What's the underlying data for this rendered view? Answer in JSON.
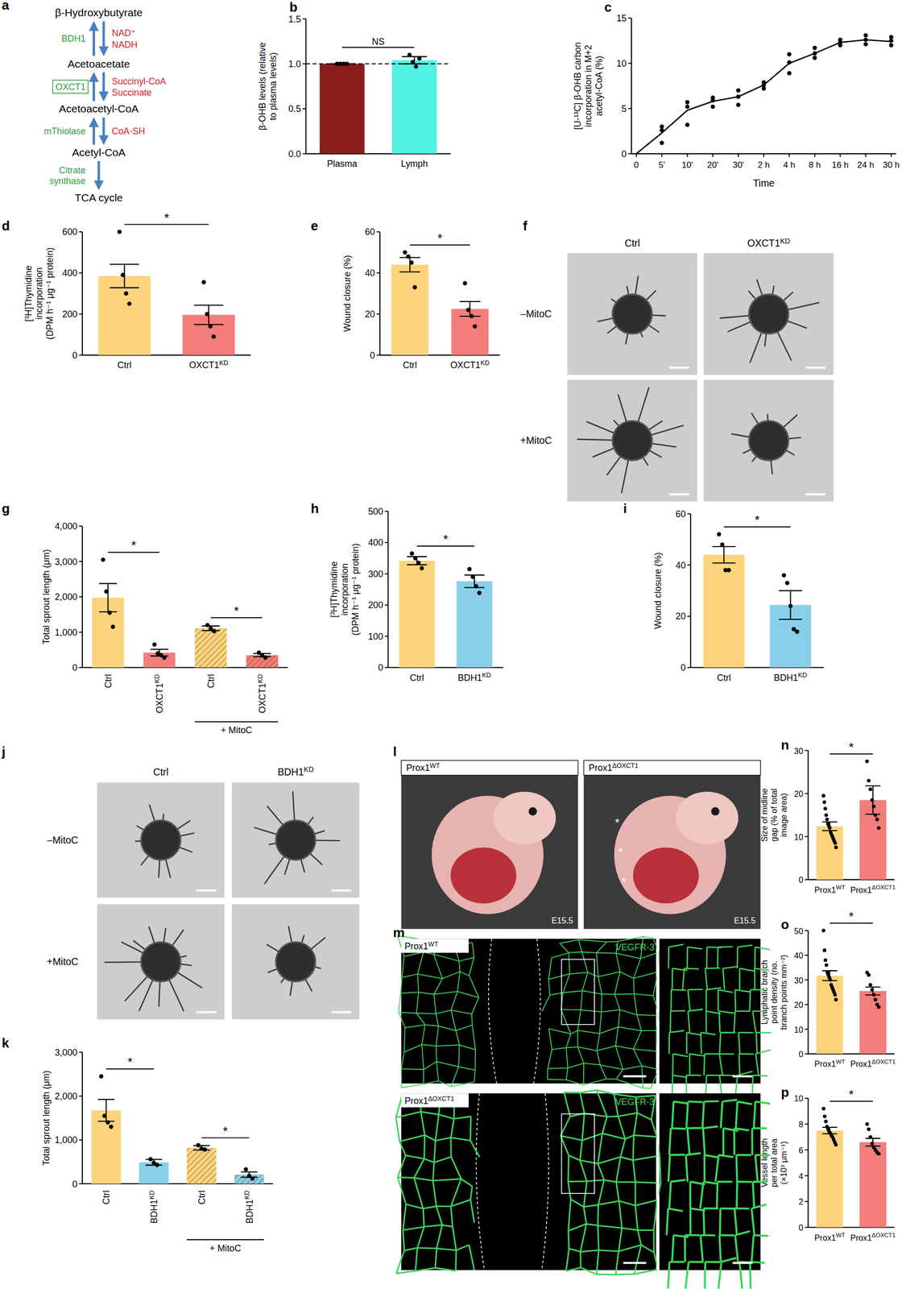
{
  "pathway": {
    "panel": "a",
    "metabolites": [
      "β-Hydroxybutyrate",
      "Acetoacetate",
      "Acetoacetyl-CoA",
      "Acetyl-CoA",
      "TCA cycle"
    ],
    "reactions": [
      {
        "enzyme": [
          "BDH1"
        ],
        "cofactors": [
          "NAD⁺",
          "NADH"
        ],
        "boxed": false,
        "reversible": true
      },
      {
        "enzyme": [
          "OXCT1"
        ],
        "cofactors": [
          "Succinyl-CoA",
          "Succinate"
        ],
        "boxed": true,
        "reversible": true
      },
      {
        "enzyme": [
          "mThiolase"
        ],
        "cofactors": [
          "CoA-SH"
        ],
        "boxed": false,
        "reversible": true
      },
      {
        "enzyme": [
          "Citrate",
          "synthase"
        ],
        "cofactors": [],
        "boxed": false,
        "reversible": false
      }
    ]
  },
  "chart_data": [
    {
      "panel": "b",
      "type": "bar",
      "ylabel": [
        "β-OHB levels (relative",
        "to plasma levels)"
      ],
      "categories": [
        "Plasma",
        "Lymph"
      ],
      "values": [
        1.0,
        1.04
      ],
      "errors": [
        0,
        0.04
      ],
      "points": [
        [
          1,
          1,
          1,
          1
        ],
        [
          1.1,
          1.02,
          0.97,
          1.06
        ]
      ],
      "colors": [
        "#8b1c1c",
        "#52f3e4"
      ],
      "ylim": [
        0,
        1.5
      ],
      "yticks": [
        {
          "value": 0,
          "label": "0.0"
        },
        {
          "value": 0.5,
          "label": "0.5"
        },
        {
          "value": 1,
          "label": "1.0"
        },
        {
          "value": 1.5,
          "label": "1.5"
        }
      ],
      "reference_line": 1,
      "significance": [
        {
          "label": "NS",
          "pair": [
            0,
            1
          ]
        }
      ]
    },
    {
      "panel": "c",
      "type": "line",
      "ylabel": [
        "[U-¹³C] β-OHB carbon",
        "incorporation in M+2",
        "acetyl-CoA (%)"
      ],
      "xlabel": "Time",
      "categories": [
        "0",
        "5'",
        "10'",
        "20'",
        "30'",
        "2 h",
        "4 h",
        "8 h",
        "16 h",
        "24 h",
        "30 h"
      ],
      "values": [
        0,
        2.3,
        4.8,
        5.8,
        6.3,
        7.6,
        10,
        11.1,
        12.3,
        12.6,
        12.4
      ],
      "points": [
        [],
        [
          1.2,
          2.6,
          3
        ],
        [
          3.2,
          5.2,
          5.7
        ],
        [
          5.2,
          5.9,
          6.2
        ],
        [
          5.4,
          6.3,
          7
        ],
        [
          7.2,
          7.6,
          7.9
        ],
        [
          8.9,
          10.1,
          11
        ],
        [
          10.6,
          11.1,
          11.7
        ],
        [
          12,
          12.3,
          12.6
        ],
        [
          12.1,
          12.6,
          13.1
        ],
        [
          12,
          12.5,
          12.9
        ]
      ],
      "color": "#000000",
      "ylim": [
        0,
        15
      ],
      "yticks": [
        0,
        5,
        10,
        15
      ]
    },
    {
      "panel": "d",
      "type": "bar",
      "ylabel": [
        "[³H]Thymidine",
        "incorporation",
        "(DPM h⁻¹ μg⁻¹ protein)"
      ],
      "categories": [
        "Ctrl",
        "OXCT1KD"
      ],
      "values": [
        385,
        196
      ],
      "errors": [
        57,
        47
      ],
      "points": [
        [
          600,
          390,
          300,
          250
        ],
        [
          355,
          200,
          140,
          90
        ]
      ],
      "colors": [
        "#fdd47c",
        "#f27d7a"
      ],
      "ylim": [
        0,
        600
      ],
      "yticks": [
        0,
        200,
        400,
        600
      ],
      "significance": [
        {
          "label": "*",
          "pair": [
            0,
            1
          ]
        }
      ]
    },
    {
      "panel": "e",
      "type": "bar",
      "ylabel": [
        "Wound closure (%)"
      ],
      "categories": [
        "Ctrl",
        "OXCT1KD"
      ],
      "values": [
        44,
        22.5
      ],
      "errors": [
        3.5,
        3.6
      ],
      "points": [
        [
          50,
          48,
          45,
          33
        ],
        [
          35,
          22,
          19,
          14
        ]
      ],
      "colors": [
        "#fdd47c",
        "#f27d7a"
      ],
      "ylim": [
        0,
        60
      ],
      "yticks": [
        0,
        20,
        40,
        60
      ],
      "significance": [
        {
          "label": "*",
          "pair": [
            0,
            1
          ]
        }
      ]
    },
    {
      "panel": "g",
      "type": "bar",
      "ylabel": [
        "Total sprout length (μm)"
      ],
      "categories": [
        "Ctrl",
        "OXCT1KD",
        "Ctrl",
        "OXCT1KD"
      ],
      "values": [
        1975,
        420,
        1110,
        350
      ],
      "errors": [
        400,
        95,
        65,
        45
      ],
      "points": [
        [
          3050,
          2150,
          1550,
          1150
        ],
        [
          650,
          400,
          350,
          280
        ],
        [
          1200,
          1100,
          1030
        ],
        [
          420,
          350,
          280
        ]
      ],
      "colors": [
        "#fdd47c",
        "#f27d7a",
        "#fdd47c",
        "#f27d7a"
      ],
      "ylim": [
        0,
        4000
      ],
      "yticks": [
        0,
        {
          "value": 1000,
          "label": "1,000"
        },
        {
          "value": 2000,
          "label": "2,000"
        },
        {
          "value": 3000,
          "label": "3,000"
        },
        {
          "value": 4000,
          "label": "4,000"
        }
      ],
      "groups": [
        {
          "label": "+ MitoC",
          "range": [
            2,
            3
          ]
        }
      ],
      "significance": [
        {
          "label": "*",
          "pair": [
            0,
            1
          ]
        },
        {
          "label": "*",
          "pair": [
            2,
            3
          ]
        }
      ]
    },
    {
      "panel": "h",
      "type": "bar",
      "ylabel": [
        "[³H]Thymidine",
        "incorporation",
        "(DPM h⁻¹ μg⁻¹ protein)"
      ],
      "categories": [
        "Ctrl",
        "BDH1KD"
      ],
      "values": [
        342,
        276
      ],
      "errors": [
        13,
        20
      ],
      "points": [
        [
          365,
          350,
          335,
          318
        ],
        [
          315,
          290,
          260,
          239
        ]
      ],
      "colors": [
        "#fdd47c",
        "#88cfe9"
      ],
      "ylim": [
        0,
        500
      ],
      "yticks": [
        0,
        100,
        200,
        300,
        400,
        500
      ],
      "significance": [
        {
          "label": "*",
          "pair": [
            0,
            1
          ]
        }
      ]
    },
    {
      "panel": "i",
      "type": "bar",
      "ylabel": [
        "Wound closure (%)"
      ],
      "categories": [
        "Ctrl",
        "BDH1KD"
      ],
      "values": [
        44,
        24.4
      ],
      "errors": [
        3.2,
        5.6
      ],
      "points": [
        [
          52,
          48,
          38,
          38
        ],
        [
          36,
          33,
          24,
          15,
          14
        ]
      ],
      "colors": [
        "#fdd47c",
        "#88cfe9"
      ],
      "ylim": [
        0,
        60
      ],
      "yticks": [
        0,
        20,
        40,
        60
      ],
      "significance": [
        {
          "label": "*",
          "pair": [
            0,
            1
          ]
        }
      ]
    },
    {
      "panel": "k",
      "type": "bar",
      "ylabel": [
        "Total sprout length (μm)"
      ],
      "categories": [
        "Ctrl",
        "BDH1KD",
        "Ctrl",
        "BDH1KD"
      ],
      "values": [
        1675,
        490,
        820,
        210
      ],
      "errors": [
        250,
        65,
        50,
        60
      ],
      "points": [
        [
          2450,
          1550,
          1400,
          1300
        ],
        [
          560,
          480,
          430
        ],
        [
          880,
          800,
          780
        ],
        [
          330,
          180,
          120
        ]
      ],
      "colors": [
        "#fdd47c",
        "#88cfe9",
        "#fdd47c",
        "#88cfe9"
      ],
      "ylim": [
        0,
        3000
      ],
      "yticks": [
        0,
        {
          "value": 1000,
          "label": "1,000"
        },
        {
          "value": 2000,
          "label": "2,000"
        },
        {
          "value": 3000,
          "label": "3,000"
        }
      ],
      "groups": [
        {
          "label": "+ MitoC",
          "range": [
            2,
            3
          ]
        }
      ],
      "significance": [
        {
          "label": "*",
          "pair": [
            0,
            1
          ]
        },
        {
          "label": "*",
          "pair": [
            2,
            3
          ]
        }
      ]
    },
    {
      "panel": "n",
      "type": "bar",
      "ylabel": [
        "Size of midline",
        "gap (% of total",
        "image area)"
      ],
      "categories": [
        "Prox1WT",
        "Prox1ΔOXCT1"
      ],
      "values": [
        12.4,
        18.5
      ],
      "errors": [
        1.0,
        3.3
      ],
      "points": [
        [
          19.5,
          18,
          16.5,
          15,
          14,
          13,
          12.5,
          12,
          11,
          10.5,
          10,
          9.5,
          9,
          8.5,
          7.5
        ],
        [
          27.5,
          23,
          21,
          18.5,
          17,
          15,
          14,
          12
        ]
      ],
      "colors": [
        "#fdd47c",
        "#f27d7a"
      ],
      "ylim": [
        0,
        30
      ],
      "yticks": [
        0,
        10,
        20,
        30
      ],
      "significance": [
        {
          "label": "*",
          "pair": [
            0,
            1
          ]
        }
      ]
    },
    {
      "panel": "o",
      "type": "bar",
      "ylabel": [
        "Lymphatic branch",
        "point density (no.",
        "branch points mm⁻²)"
      ],
      "categories": [
        "Prox1WT",
        "Prox1ΔOXCT1"
      ],
      "values": [
        31.7,
        25.5
      ],
      "errors": [
        2,
        1.6
      ],
      "points": [
        [
          50,
          42,
          38,
          36,
          33,
          32,
          31,
          30,
          28,
          27,
          26,
          25,
          24,
          22
        ],
        [
          33,
          32,
          28,
          26,
          24,
          22,
          20,
          19
        ]
      ],
      "colors": [
        "#fdd47c",
        "#f27d7a"
      ],
      "ylim": [
        0,
        50
      ],
      "yticks": [
        0,
        10,
        20,
        30,
        40,
        50
      ],
      "significance": [
        {
          "label": "*",
          "pair": [
            0,
            1
          ]
        }
      ]
    },
    {
      "panel": "p",
      "type": "bar",
      "ylabel": [
        "Vessel length",
        "per total area",
        "(×10³ μm⁻¹)"
      ],
      "categories": [
        "Prox1WT",
        "Prox1ΔOXCT1"
      ],
      "values": [
        7.5,
        6.6
      ],
      "errors": [
        0.25,
        0.3
      ],
      "points": [
        [
          9.2,
          8.6,
          8.2,
          7.8,
          7.6,
          7.4,
          7.3,
          7.1,
          7,
          6.8,
          6.6,
          6.4
        ],
        [
          8,
          7.6,
          7,
          6.5,
          6.2,
          6,
          5.8,
          5.7
        ]
      ],
      "colors": [
        "#fdd47c",
        "#f27d7a"
      ],
      "ylim": [
        0,
        10
      ],
      "yticks": [
        0,
        2,
        4,
        6,
        8,
        10
      ],
      "significance": [
        {
          "label": "*",
          "pair": [
            0,
            1
          ]
        }
      ]
    }
  ],
  "images": [
    {
      "panel": "f",
      "kind": "spheroids",
      "columns": [
        "Ctrl",
        "OXCT1KD"
      ],
      "rows": [
        "–MitoC",
        "+MitoC"
      ]
    },
    {
      "panel": "j",
      "kind": "spheroids",
      "columns": [
        "Ctrl",
        "BDH1KD"
      ],
      "rows": [
        "–MitoC",
        "+MitoC"
      ]
    },
    {
      "panel": "l",
      "kind": "embryos",
      "columns": [
        "Prox1WT",
        "Prox1ΔOXCT1"
      ],
      "stage": "E15.5",
      "annotations": [
        [],
        [
          "*",
          "*",
          "*"
        ]
      ]
    },
    {
      "panel": "m",
      "kind": "whole-mount",
      "rows": [
        "Prox1WT",
        "Prox1ΔOXCT1"
      ],
      "stain": "VEGFR-3"
    }
  ]
}
